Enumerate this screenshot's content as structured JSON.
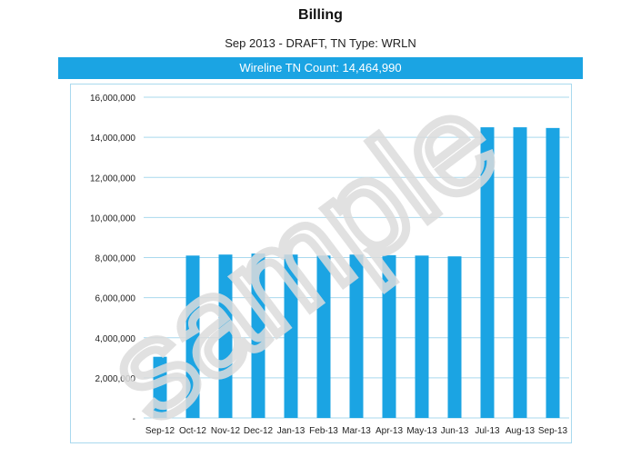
{
  "header": {
    "title": "Billing",
    "subtitle": "Sep 2013 - DRAFT, TN Type: WRLN",
    "banner": "Wireline TN Count: 14,464,990"
  },
  "watermark": "sample",
  "colors": {
    "bar": "#1ba4e3",
    "banner": "#1ba4e3",
    "grid": "#a9d9ee"
  },
  "chart_data": {
    "type": "bar",
    "categories": [
      "Sep-12",
      "Oct-12",
      "Nov-12",
      "Dec-12",
      "Jan-13",
      "Feb-13",
      "Mar-13",
      "Apr-13",
      "May-13",
      "Jun-13",
      "Jul-13",
      "Aug-13",
      "Sep-13"
    ],
    "values": [
      3050000,
      8100000,
      8150000,
      8200000,
      8150000,
      8100000,
      8150000,
      8120000,
      8100000,
      8060000,
      14500000,
      14500000,
      14464990
    ],
    "ylim": [
      0,
      16000000
    ],
    "yticks": [
      0,
      2000000,
      4000000,
      6000000,
      8000000,
      10000000,
      12000000,
      14000000,
      16000000
    ],
    "ytick_labels": [
      "-",
      "2,000,000",
      "4,000,000",
      "6,000,000",
      "8,000,000",
      "10,000,000",
      "12,000,000",
      "14,000,000",
      "16,000,000"
    ],
    "grid": true,
    "legend": "none"
  }
}
